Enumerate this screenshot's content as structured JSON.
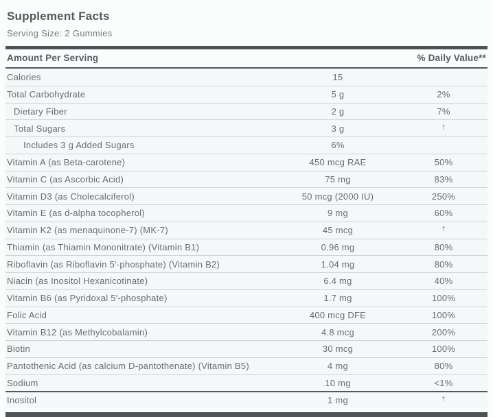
{
  "title": "Supplement Facts",
  "serving_size": "Serving Size: 2 Gummies",
  "header": {
    "amount_label": "Amount Per Serving",
    "daily_value_label": "% Daily Value**"
  },
  "rows": [
    {
      "label": "Calories",
      "amount": "15",
      "dv": "",
      "indent": 0
    },
    {
      "label": "Total Carbohydrate",
      "amount": "5 g",
      "dv": "2%",
      "indent": 0
    },
    {
      "label": "Dietary Fiber",
      "amount": "2 g",
      "dv": "7%",
      "indent": 1
    },
    {
      "label": "Total Sugars",
      "amount": "3 g",
      "dv": "†",
      "indent": 1
    },
    {
      "label": "Includes 3 g Added Sugars",
      "amount": "6%",
      "dv": "",
      "indent": 2
    },
    {
      "label": "Vitamin A (as Beta-carotene)",
      "amount": "450 mcg RAE",
      "dv": "50%",
      "indent": 0
    },
    {
      "label": "Vitamin C (as Ascorbic Acid)",
      "amount": "75 mg",
      "dv": "83%",
      "indent": 0
    },
    {
      "label": "Vitamin D3 (as Cholecalciferol)",
      "amount": "50 mcg (2000 IU)",
      "dv": "250%",
      "indent": 0
    },
    {
      "label": "Vitamin E (as d-alpha tocopherol)",
      "amount": "9 mg",
      "dv": "60%",
      "indent": 0
    },
    {
      "label": "Vitamin K2 (as menaquinone-7) (MK-7)",
      "amount": "45 mcg",
      "dv": "†",
      "indent": 0
    },
    {
      "label": "Thiamin (as Thiamin Mononitrate) (Vitamin B1)",
      "amount": "0.96 mg",
      "dv": "80%",
      "indent": 0
    },
    {
      "label": "Riboflavin (as Riboflavin 5'-phosphate) (Vitamin B2)",
      "amount": "1.04 mg",
      "dv": "80%",
      "indent": 0
    },
    {
      "label": "Niacin (as Inositol Hexanicotinate)",
      "amount": "6.4 mg",
      "dv": "40%",
      "indent": 0
    },
    {
      "label": "Vitamin B6 (as Pyridoxal 5'-phosphate)",
      "amount": "1.7 mg",
      "dv": "100%",
      "indent": 0
    },
    {
      "label": "Folic Acid",
      "amount": "400 mcg DFE",
      "dv": "100%",
      "indent": 0
    },
    {
      "label": "Vitamin B12 (as Methylcobalamin)",
      "amount": "4.8 mcg",
      "dv": "200%",
      "indent": 0
    },
    {
      "label": "Biotin",
      "amount": "30 mcg",
      "dv": "100%",
      "indent": 0
    },
    {
      "label": "Pantothenic Acid (as calcium D-pantothenate) (Vitamin B5)",
      "amount": "4 mg",
      "dv": "80%",
      "indent": 0
    },
    {
      "label": "Sodium",
      "amount": "10 mg",
      "dv": "<1%",
      "indent": 0
    },
    {
      "label": "Inositol",
      "amount": "1 mg",
      "dv": "†",
      "indent": 0,
      "divider": "thick"
    }
  ],
  "colors": {
    "bar": "#515257",
    "heading_text": "#55565b",
    "body_text": "#696b71",
    "row_separator": "#d0d2d5"
  }
}
